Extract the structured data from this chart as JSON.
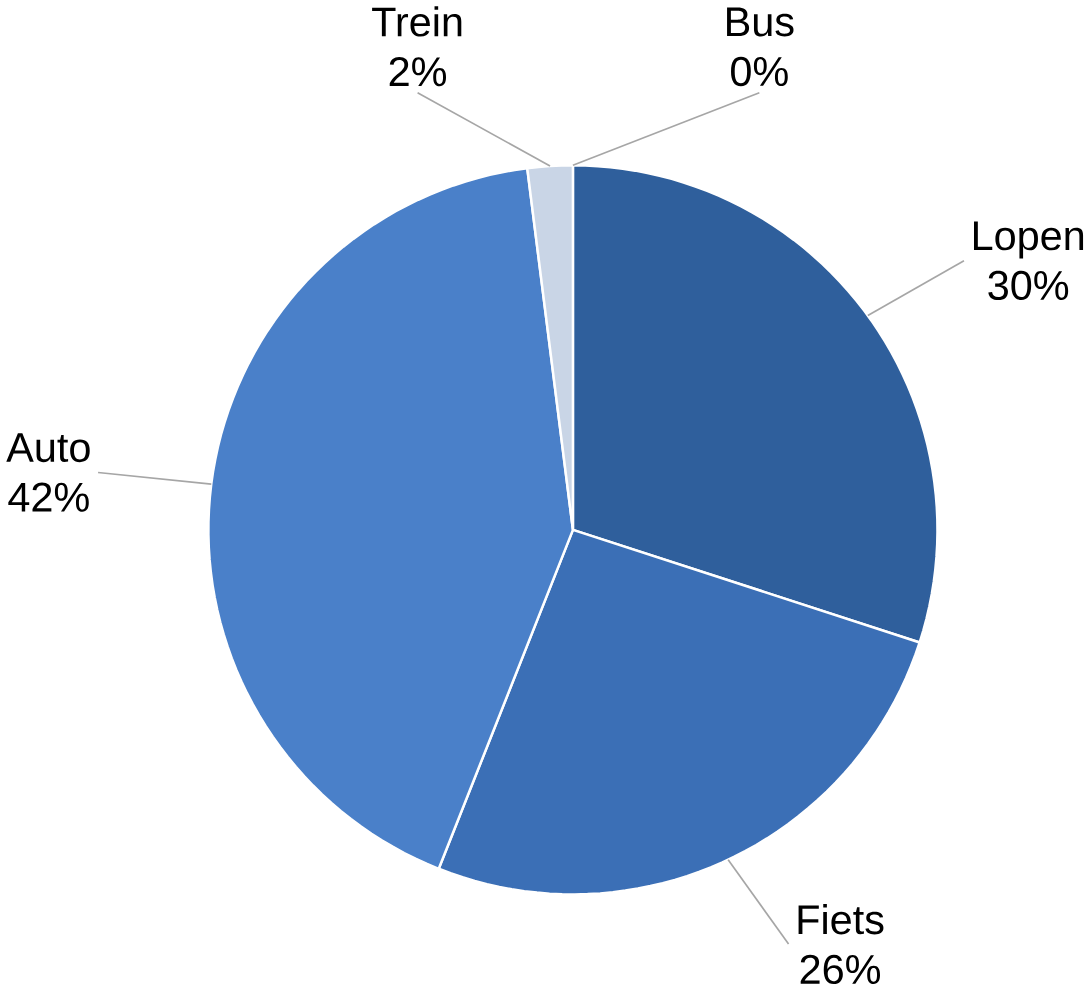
{
  "chart_data": {
    "type": "pie",
    "categories": [
      "Lopen",
      "Fiets",
      "Auto",
      "Trein",
      "Bus"
    ],
    "values": [
      30,
      26,
      42,
      2,
      0
    ],
    "colors": [
      "#2f5f9c",
      "#3b6fb6",
      "#4a80c9",
      "#c9d5e6",
      "#dfe6f0"
    ],
    "value_labels": [
      "30%",
      "26%",
      "42%",
      "2%",
      "0%"
    ]
  }
}
